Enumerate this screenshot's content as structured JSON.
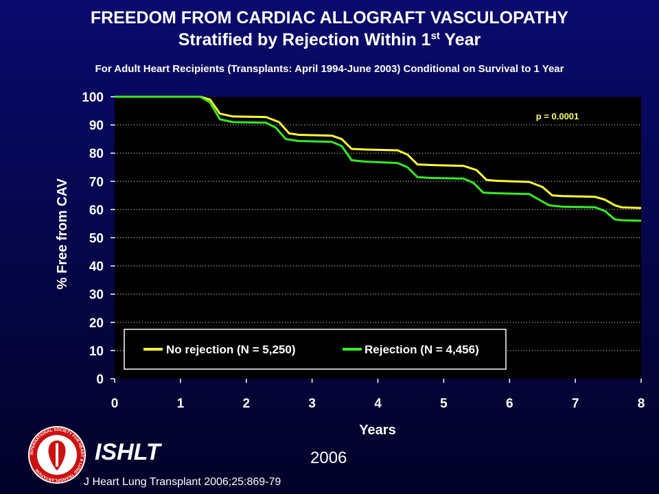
{
  "header": {
    "title_line1": "FREEDOM FROM CARDIAC ALLOGRAFT VASCULOPATHY",
    "title_line2": "Stratified by Rejection Within 1",
    "title_line2_sup": "st",
    "title_line2_tail": " Year",
    "subtitle": "For Adult Heart Recipients (Transplants: April 1994-June 2003) Conditional on Survival to 1 Year"
  },
  "chart_data": {
    "type": "line",
    "step": true,
    "xlabel": "Years",
    "ylabel": "% Free from CAV",
    "xlim": [
      0,
      8
    ],
    "ylim": [
      0,
      100
    ],
    "x_ticks": [
      "0",
      "1",
      "2",
      "3",
      "4",
      "5",
      "6",
      "7",
      "8"
    ],
    "y_ticks": [
      "0",
      "10",
      "20",
      "30",
      "40",
      "50",
      "60",
      "70",
      "80",
      "90",
      "100"
    ],
    "grid": "horizontal dotted",
    "legend_placement": "bottom",
    "annotation": "p = 0.0001",
    "series": [
      {
        "name": "No rejection (N = 5,250)",
        "color": "#ffff33",
        "x": [
          0,
          1.3,
          1.45,
          1.6,
          1.8,
          2.3,
          2.5,
          2.65,
          2.8,
          3.3,
          3.45,
          3.6,
          3.8,
          4.3,
          4.45,
          4.6,
          4.8,
          5.3,
          5.5,
          5.65,
          5.8,
          6.3,
          6.5,
          6.65,
          6.8,
          7.3,
          7.45,
          7.6,
          7.7,
          8.0
        ],
        "y": [
          100,
          100,
          99,
          94,
          93,
          92.8,
          91,
          87,
          86.5,
          86.2,
          85,
          81.5,
          81.3,
          81,
          79.5,
          76,
          75.8,
          75.5,
          74,
          70.5,
          70.2,
          69.8,
          68,
          65,
          64.8,
          64.5,
          63.5,
          61.5,
          60.8,
          60.5
        ]
      },
      {
        "name": "Rejection (N = 4,456)",
        "color": "#33ee22",
        "x": [
          0,
          1.3,
          1.45,
          1.6,
          1.8,
          2.3,
          2.45,
          2.6,
          2.8,
          3.3,
          3.45,
          3.6,
          3.8,
          4.3,
          4.45,
          4.6,
          4.8,
          5.3,
          5.45,
          5.6,
          5.8,
          6.3,
          6.45,
          6.6,
          6.8,
          7.3,
          7.45,
          7.6,
          7.7,
          8.0
        ],
        "y": [
          100,
          100,
          98,
          92,
          91,
          90.8,
          89,
          85,
          84.3,
          84,
          82.5,
          77.5,
          77,
          76.5,
          75,
          71.5,
          71.2,
          71,
          69.5,
          66,
          65.8,
          65.5,
          63.5,
          61.5,
          61,
          60.8,
          59.5,
          56.5,
          56.2,
          56
        ]
      }
    ]
  },
  "footer": {
    "org": "ISHLT",
    "year": "2006",
    "citation": "J Heart Lung Transplant 2006;25:869-79",
    "logo_ring_text": "INTERNATIONAL SOCIETY FOR HEART & LUNG TRANSPLANTATION"
  },
  "colors": {
    "background_top": "#0a0a6e",
    "background_bottom": "#020228",
    "plot_background": "#000000",
    "logo_red": "#cc1111"
  }
}
